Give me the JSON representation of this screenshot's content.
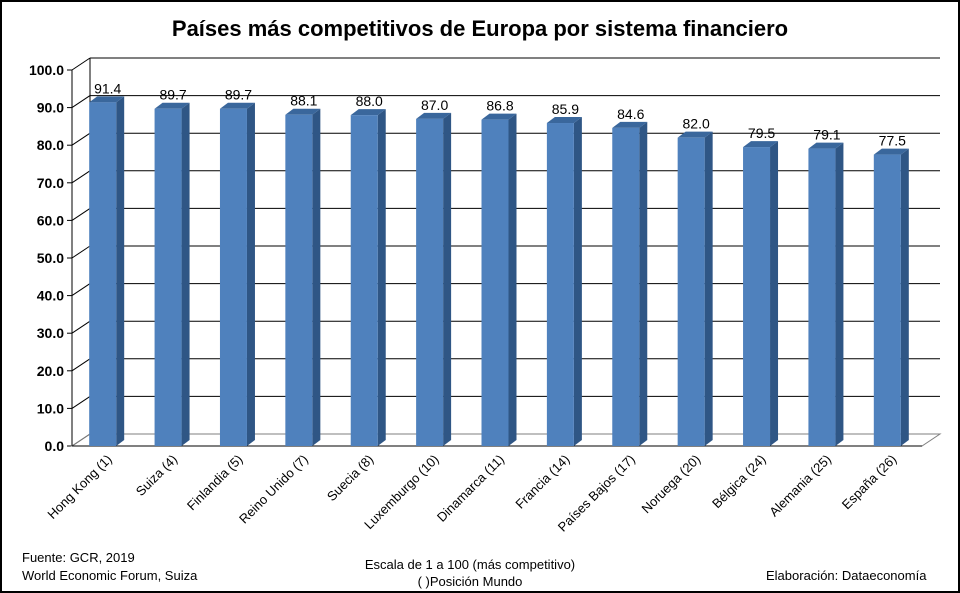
{
  "chart_data": {
    "type": "bar",
    "title": "Países más competitivos de Europa por sistema financiero",
    "categories": [
      "Hong Kong (1)",
      "Suiza (4)",
      "Finlandia (5)",
      "Reino Unido (7)",
      "Suecia (8)",
      "Luxemburgo (10)",
      "Dinamarca (11)",
      "Francia (14)",
      "Países Bajos (17)",
      "Noruega (20)",
      "Bélgica (24)",
      "Alemania (25)",
      "España (26)"
    ],
    "values": [
      91.4,
      89.7,
      89.7,
      88.1,
      88.0,
      87.0,
      86.8,
      85.9,
      84.6,
      82.0,
      79.5,
      79.1,
      77.5
    ],
    "value_labels": [
      "91.4",
      "89.7",
      "89.7",
      "88.1",
      "88.0",
      "87.0",
      "86.8",
      "85.9",
      "84.6",
      "82.0",
      "79.5",
      "79.1",
      "77.5"
    ],
    "ylim": [
      0,
      100
    ],
    "yticks": [
      "0.0",
      "10.0",
      "20.0",
      "30.0",
      "40.0",
      "50.0",
      "60.0",
      "70.0",
      "80.0",
      "90.0",
      "100.0"
    ],
    "xlabel": "",
    "ylabel": "",
    "grid": true,
    "style": "3d-column"
  },
  "colors": {
    "bar_front": "#4f81bd",
    "bar_side": "#2f5685",
    "bar_top": "#3a679c",
    "grid": "#000000"
  },
  "footer": {
    "source_line1": "Fuente:  GCR, 2019",
    "source_line2": "World Economic Forum, Suiza",
    "note_line1": "Escala de 1 a 100 (más competitivo)",
    "note_line2": "( )Posición Mundo",
    "credit": "Elaboración: Dataeconomía"
  }
}
